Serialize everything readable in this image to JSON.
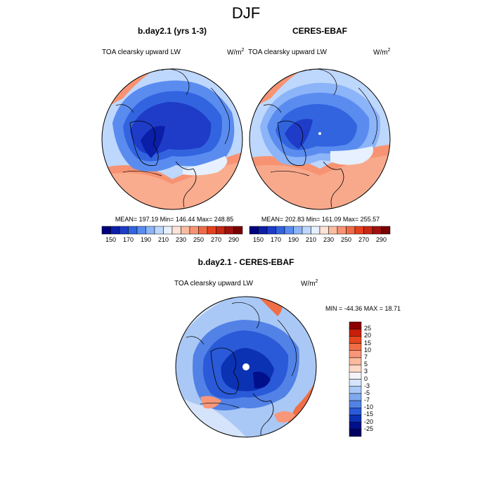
{
  "page_title": "DJF",
  "panels": [
    {
      "title": "b.day2.1 (yrs 1-3)",
      "variable": "TOA clearsky upward LW",
      "units": "W/m",
      "units_sup": "2",
      "stats": "MEAN= 197.19  Min= 146.44  Max= 248.85"
    },
    {
      "title": "CERES-EBAF",
      "variable": "TOA clearsky upward LW",
      "units": "W/m",
      "units_sup": "2",
      "stats": "MEAN= 202.83  Min= 161.09  Max= 255.57"
    }
  ],
  "colorbar_top": {
    "labels": [
      "150",
      "170",
      "190",
      "210",
      "230",
      "250",
      "270",
      "290"
    ],
    "colors": [
      "#00007f",
      "#0a1ea8",
      "#1e3cc8",
      "#3264e0",
      "#5a8cf0",
      "#8cb4f8",
      "#bed7fc",
      "#e6f0ff",
      "#fde3d7",
      "#fabca0",
      "#f79373",
      "#f06a48",
      "#e6411e",
      "#c82814",
      "#a01010",
      "#780000"
    ]
  },
  "diff_panel": {
    "title": "b.day2.1 - CERES-EBAF",
    "variable": "TOA clearsky upward LW",
    "units": "W/m",
    "units_sup": "2",
    "minmax": "MIN = -44.36 MAX =  18.71",
    "colorbar_labels": [
      "25",
      "20",
      "15",
      "10",
      "7",
      "5",
      "3",
      "0",
      "-3",
      "-5",
      "-7",
      "-10",
      "-15",
      "-20",
      "-25"
    ],
    "colorbar_colors": [
      "#8b0000",
      "#c81e0a",
      "#e6461e",
      "#f06e46",
      "#f8967a",
      "#fbb99f",
      "#fdd8c6",
      "#f3f3f8",
      "#d5e4fa",
      "#aac8f5",
      "#7fa8ee",
      "#5282e6",
      "#2a5ad8",
      "#0c32b4",
      "#00108a",
      "#000060"
    ]
  },
  "map_colors": {
    "land_outline": "#000000",
    "deep_blue": "#1e3cc8",
    "mid_blue": "#3264e0",
    "light_blue": "#8cb4f8",
    "pale": "#e6f0ff",
    "salmon": "#f79373",
    "light_salmon": "#fabca0"
  }
}
